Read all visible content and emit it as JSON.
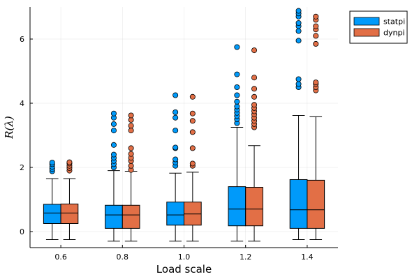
{
  "chart_data": {
    "type": "box",
    "title": "",
    "xlabel": "Load scale",
    "ylabel": "R(λ)",
    "xlim": [
      0.5,
      1.5
    ],
    "ylim": [
      -0.5,
      7.0
    ],
    "xticks": [
      0.6,
      0.8,
      1.0,
      1.2,
      1.4
    ],
    "xtick_labels": [
      "0.6",
      "0.8",
      "1.0",
      "1.2",
      "1.4"
    ],
    "yticks": [
      0,
      2,
      4,
      6
    ],
    "ytick_labels": [
      "0",
      "2",
      "4",
      "6"
    ],
    "grid": true,
    "legend_position": "outer top-right",
    "series": [
      {
        "name": "statpi",
        "color": "#009AFA",
        "boxes": [
          {
            "x": 0.6,
            "whisker_low": -0.25,
            "q1": 0.25,
            "median": 0.58,
            "q3": 0.85,
            "whisker_high": 1.65,
            "outliers": [
              1.88,
              1.95,
              2.02,
              2.1,
              2.15
            ]
          },
          {
            "x": 0.8,
            "whisker_low": -0.3,
            "q1": 0.1,
            "median": 0.52,
            "q3": 0.82,
            "whisker_high": 1.9,
            "outliers": [
              2.0,
              2.1,
              2.2,
              2.3,
              2.4,
              2.7,
              3.15,
              3.35,
              3.55,
              3.68
            ]
          },
          {
            "x": 1.0,
            "whisker_low": -0.3,
            "q1": 0.2,
            "median": 0.52,
            "q3": 0.92,
            "whisker_high": 1.82,
            "outliers": [
              2.05,
              2.15,
              2.25,
              2.6,
              2.62,
              3.15,
              3.55,
              3.72,
              4.25
            ]
          },
          {
            "x": 1.2,
            "whisker_low": -0.3,
            "q1": 0.18,
            "median": 0.7,
            "q3": 1.4,
            "whisker_high": 3.25,
            "outliers": [
              3.38,
              3.5,
              3.6,
              3.7,
              3.8,
              3.9,
              4.05,
              4.25,
              4.5,
              4.9,
              5.75
            ]
          },
          {
            "x": 1.4,
            "whisker_low": -0.25,
            "q1": 0.1,
            "median": 0.68,
            "q3": 1.62,
            "whisker_high": 3.62,
            "outliers": [
              4.5,
              4.6,
              4.75,
              5.95,
              6.25,
              6.4,
              6.5,
              6.7,
              6.8,
              6.88
            ]
          }
        ]
      },
      {
        "name": "dynpi",
        "color": "#E26F46",
        "boxes": [
          {
            "x": 0.6,
            "whisker_low": -0.25,
            "q1": 0.25,
            "median": 0.58,
            "q3": 0.86,
            "whisker_high": 1.65,
            "outliers": [
              1.9,
              1.98,
              2.05,
              2.12,
              2.16
            ]
          },
          {
            "x": 0.8,
            "whisker_low": -0.3,
            "q1": 0.1,
            "median": 0.52,
            "q3": 0.82,
            "whisker_high": 1.88,
            "outliers": [
              1.92,
              2.05,
              2.2,
              2.3,
              2.42,
              2.6,
              3.15,
              3.3,
              3.48,
              3.62
            ]
          },
          {
            "x": 1.0,
            "whisker_low": -0.3,
            "q1": 0.2,
            "median": 0.55,
            "q3": 0.92,
            "whisker_high": 1.85,
            "outliers": [
              2.05,
              2.12,
              2.6,
              3.1,
              3.45,
              3.68,
              4.2
            ]
          },
          {
            "x": 1.2,
            "whisker_low": -0.3,
            "q1": 0.18,
            "median": 0.7,
            "q3": 1.38,
            "whisker_high": 2.68,
            "outliers": [
              3.25,
              3.35,
              3.45,
              3.55,
              3.65,
              3.75,
              3.85,
              3.95,
              4.2,
              4.45,
              4.8,
              5.65
            ]
          },
          {
            "x": 1.4,
            "whisker_low": -0.25,
            "q1": 0.1,
            "median": 0.68,
            "q3": 1.6,
            "whisker_high": 3.58,
            "outliers": [
              4.4,
              4.5,
              4.6,
              4.65,
              5.85,
              6.1,
              6.3,
              6.4,
              6.6,
              6.7
            ]
          }
        ]
      }
    ]
  }
}
